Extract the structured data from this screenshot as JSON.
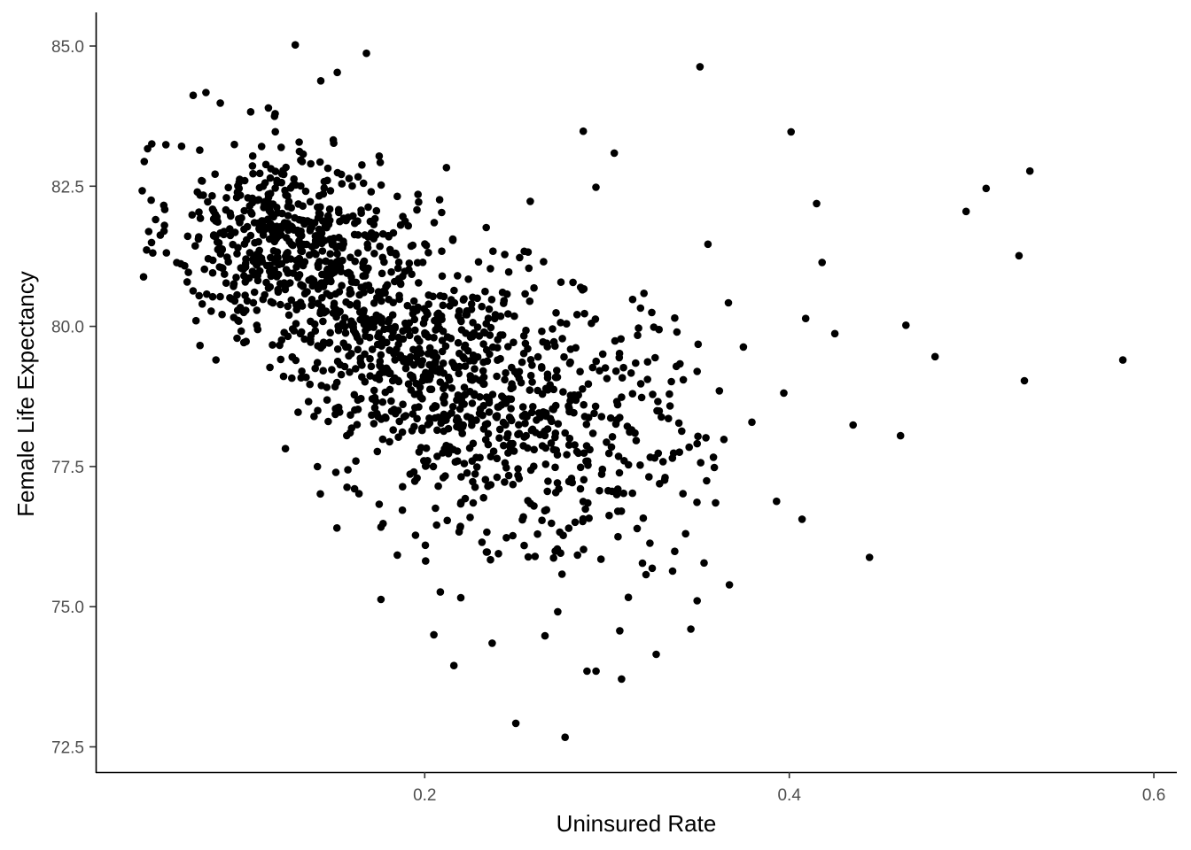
{
  "chart_data": {
    "type": "scatter",
    "title": "",
    "xlabel": "Uninsured Rate",
    "ylabel": "Female Life Expectancy",
    "xlim": [
      0.0195,
      0.6126
    ],
    "ylim": [
      72.05,
      85.6
    ],
    "x_ticks": [
      "0.2",
      "0.4",
      "0.6"
    ],
    "y_ticks": [
      "72.5",
      "75.0",
      "77.5",
      "80.0",
      "82.5",
      "85.0"
    ],
    "grid": false,
    "legend": "none",
    "point_color": "#000000",
    "outliers": [
      {
        "x": 0.129,
        "y": 85.02
      },
      {
        "x": 0.168,
        "y": 84.87
      },
      {
        "x": 0.152,
        "y": 84.53
      },
      {
        "x": 0.143,
        "y": 84.38
      },
      {
        "x": 0.351,
        "y": 84.63
      },
      {
        "x": 0.401,
        "y": 83.47
      },
      {
        "x": 0.532,
        "y": 82.77
      },
      {
        "x": 0.508,
        "y": 82.46
      },
      {
        "x": 0.415,
        "y": 82.19
      },
      {
        "x": 0.497,
        "y": 82.05
      },
      {
        "x": 0.526,
        "y": 81.26
      },
      {
        "x": 0.418,
        "y": 81.14
      },
      {
        "x": 0.583,
        "y": 79.4
      },
      {
        "x": 0.529,
        "y": 79.03
      },
      {
        "x": 0.48,
        "y": 79.46
      },
      {
        "x": 0.464,
        "y": 80.02
      },
      {
        "x": 0.425,
        "y": 79.87
      },
      {
        "x": 0.409,
        "y": 80.14
      },
      {
        "x": 0.461,
        "y": 78.05
      },
      {
        "x": 0.435,
        "y": 78.24
      },
      {
        "x": 0.397,
        "y": 78.81
      },
      {
        "x": 0.444,
        "y": 75.88
      },
      {
        "x": 0.407,
        "y": 76.56
      },
      {
        "x": 0.393,
        "y": 76.88
      },
      {
        "x": 0.25,
        "y": 72.92
      },
      {
        "x": 0.277,
        "y": 72.67
      },
      {
        "x": 0.308,
        "y": 73.71
      },
      {
        "x": 0.216,
        "y": 73.95
      },
      {
        "x": 0.289,
        "y": 73.85
      },
      {
        "x": 0.294,
        "y": 73.85
      },
      {
        "x": 0.327,
        "y": 74.15
      },
      {
        "x": 0.237,
        "y": 74.35
      },
      {
        "x": 0.205,
        "y": 74.5
      },
      {
        "x": 0.346,
        "y": 74.6
      },
      {
        "x": 0.266,
        "y": 74.48
      },
      {
        "x": 0.307,
        "y": 74.57
      },
      {
        "x": 0.102,
        "y": 79.73
      },
      {
        "x": 0.176,
        "y": 75.13
      },
      {
        "x": 0.176,
        "y": 76.42
      },
      {
        "x": 0.185,
        "y": 75.92
      },
      {
        "x": 0.045,
        "y": 82.42
      },
      {
        "x": 0.048,
        "y": 83.17
      },
      {
        "x": 0.058,
        "y": 83.24
      },
      {
        "x": 0.057,
        "y": 81.7
      },
      {
        "x": 0.073,
        "y": 84.12
      },
      {
        "x": 0.08,
        "y": 84.17
      },
      {
        "x": 0.304,
        "y": 83.09
      },
      {
        "x": 0.287,
        "y": 83.48
      }
    ],
    "clusters": [
      {
        "x_mean": 0.118,
        "x_sd": 0.028,
        "y_mean": 81.6,
        "y_sd": 0.85,
        "count": 440
      },
      {
        "x_mean": 0.17,
        "x_sd": 0.03,
        "y_mean": 80.3,
        "y_sd": 1.0,
        "count": 400
      },
      {
        "x_mean": 0.222,
        "x_sd": 0.032,
        "y_mean": 78.8,
        "y_sd": 1.05,
        "count": 380
      },
      {
        "x_mean": 0.27,
        "x_sd": 0.036,
        "y_mean": 78.0,
        "y_sd": 1.35,
        "count": 230
      },
      {
        "x_mean": 0.33,
        "x_sd": 0.03,
        "y_mean": 77.9,
        "y_sd": 1.3,
        "count": 90
      }
    ]
  }
}
